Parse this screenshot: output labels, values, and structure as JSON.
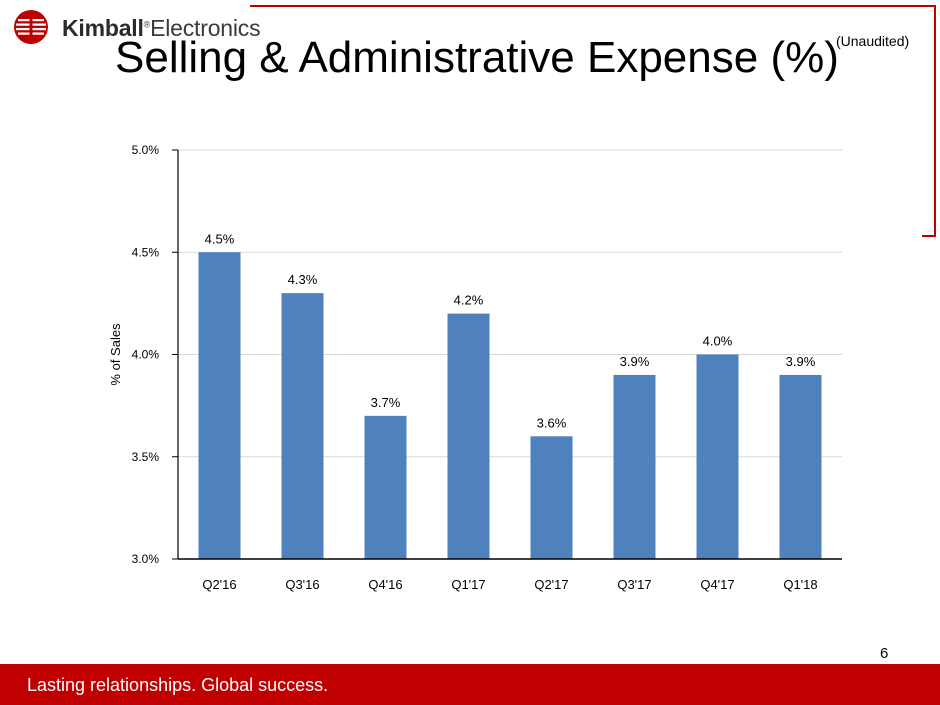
{
  "header": {
    "logo_bold": "Kimball",
    "logo_mark": "®",
    "logo_light": "Electronics",
    "title": "Selling & Administrative Expense (%)",
    "note": "(Unaudited)"
  },
  "footer": {
    "tagline": "Lasting relationships. Global success.",
    "page_number": "6"
  },
  "colors": {
    "brand_red": "#c00000",
    "bar_blue": "#4f81bd"
  },
  "chart_data": {
    "type": "bar",
    "title": "Selling & Administrative Expense (%)",
    "xlabel": "",
    "ylabel": "% of Sales",
    "categories": [
      "Q2'16",
      "Q3'16",
      "Q4'16",
      "Q1'17",
      "Q2'17",
      "Q3'17",
      "Q4'17",
      "Q1'18"
    ],
    "values": [
      4.5,
      4.3,
      3.7,
      4.2,
      3.6,
      3.9,
      4.0,
      3.9
    ],
    "data_labels": [
      "4.5%",
      "4.3%",
      "3.7%",
      "4.2%",
      "3.6%",
      "3.9%",
      "4.0%",
      "3.9%"
    ],
    "ylim": [
      3.0,
      5.0
    ],
    "yticks": [
      3.0,
      3.5,
      4.0,
      4.5,
      5.0
    ],
    "ytick_labels": [
      "3.0%",
      "3.5%",
      "4.0%",
      "4.5%",
      "5.0%"
    ],
    "grid": true,
    "legend": "none"
  }
}
